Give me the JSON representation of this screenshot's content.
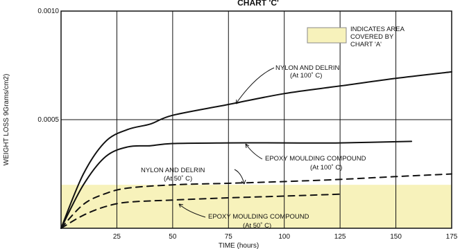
{
  "chart_data": {
    "type": "line",
    "title": "CHART 'C'",
    "xlabel": "TIME (hours)",
    "ylabel": "WEIGHT LOSS 9Grams/cm2)",
    "xlim": [
      0,
      175
    ],
    "ylim": [
      0,
      0.001
    ],
    "x_ticks": [
      "25",
      "50",
      "75",
      "100",
      "125",
      "150",
      "175"
    ],
    "y_ticks": [
      "0.0005",
      "0.0010"
    ],
    "grid": true,
    "shaded_band": {
      "ymin": 0,
      "ymax": 0.0002,
      "color": "#f7f2bb",
      "legend_label": "INDICATES AREA COVERED BY CHART 'A'"
    },
    "series": [
      {
        "name": "NYLON AND DELRIN (At 100˚ C)",
        "style": "solid",
        "x": [
          0,
          10,
          20,
          30,
          40,
          50,
          75,
          100,
          125,
          150,
          175
        ],
        "y": [
          0,
          0.00025,
          0.0004,
          0.000455,
          0.00048,
          0.00052,
          0.00057,
          0.00062,
          0.000655,
          0.00069,
          0.00072
        ]
      },
      {
        "name": "EPOXY MOULDING COMPOUND (At 100˚ C)",
        "style": "solid",
        "x": [
          0,
          10,
          20,
          30,
          40,
          50,
          75,
          100,
          125,
          157
        ],
        "y": [
          0,
          0.0002,
          0.00033,
          0.000375,
          0.00038,
          0.00039,
          0.000393,
          0.000393,
          0.000393,
          0.0004
        ]
      },
      {
        "name": "NYLON AND DELRIN (At 50˚ C)",
        "style": "dashed",
        "x": [
          0,
          10,
          20,
          30,
          50,
          75,
          100,
          125,
          150,
          175
        ],
        "y": [
          0,
          0.00011,
          0.00016,
          0.000185,
          0.0002,
          0.000207,
          0.000215,
          0.000225,
          0.000238,
          0.00025
        ]
      },
      {
        "name": "EPOXY MOULDING COMPOUND (At 50˚ C)",
        "style": "dashed",
        "x": [
          0,
          10,
          20,
          30,
          50,
          75,
          100,
          125
        ],
        "y": [
          0,
          6e-05,
          0.0001,
          0.00012,
          0.00013,
          0.00014,
          0.000148,
          0.000157
        ]
      }
    ],
    "annotations": [
      {
        "series": 0,
        "lines": [
          "NYLON AND DELRIN",
          "(At 100˚ C)"
        ]
      },
      {
        "series": 1,
        "lines": [
          "EPOXY MOULDING COMPOUND",
          "(At 100˚ C)"
        ]
      },
      {
        "series": 2,
        "lines": [
          "NYLON AND DELRIN",
          "(At 50˚ C)"
        ]
      },
      {
        "series": 3,
        "lines": [
          "EPOXY MOULDING COMPOUND",
          "(At 50˚ C)"
        ]
      }
    ],
    "legend_lines": [
      "INDICATES AREA",
      "COVERED BY",
      "CHART 'A'"
    ]
  }
}
